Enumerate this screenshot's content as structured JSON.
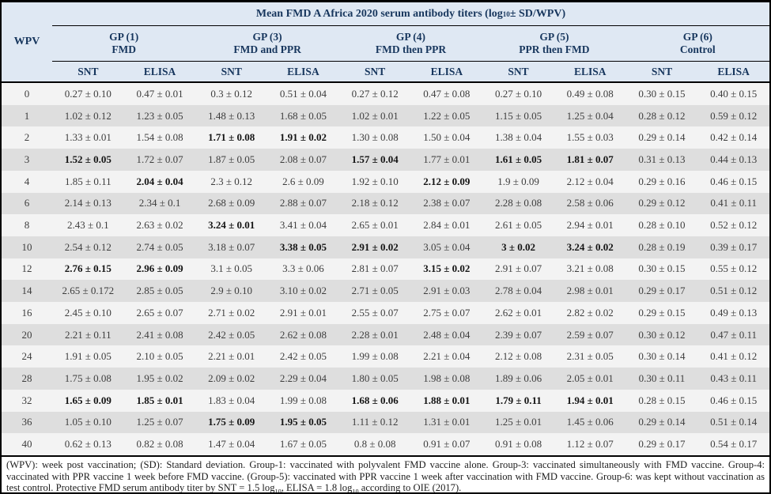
{
  "colors": {
    "header_background": "#dfe8f3",
    "header_text": "#17365d",
    "row_light": "#f3f3f3",
    "row_shaded": "#dedede",
    "body_text": "#3d3d3d",
    "rule": "#000000"
  },
  "table": {
    "title_parts": [
      {
        "t": "Mean FMD A Africa 2020 serum antibody titers (log"
      },
      {
        "t": "10",
        "sub": true
      },
      {
        "t": " ± SD/WPV)"
      }
    ],
    "corner_label": "WPV",
    "groups": [
      {
        "id": "gp1",
        "line1": "GP (1)",
        "line2": "FMD"
      },
      {
        "id": "gp3",
        "line1": "GP (3)",
        "line2": "FMD and PPR"
      },
      {
        "id": "gp4",
        "line1": "GP (4)",
        "line2": "FMD then PPR"
      },
      {
        "id": "gp5",
        "line1": "GP (5)",
        "line2": "PPR then FMD"
      },
      {
        "id": "gp6",
        "line1": "GP (6)",
        "line2": "Control"
      }
    ],
    "subheaders": [
      "SNT",
      "ELISA"
    ],
    "rows": [
      {
        "wpv": "0",
        "cells": [
          {
            "v": "0.27 ± 0.10"
          },
          {
            "v": "0.47 ± 0.01"
          },
          {
            "v": "0.3 ± 0.12"
          },
          {
            "v": "0.51 ± 0.04"
          },
          {
            "v": "0.27 ± 0.12"
          },
          {
            "v": "0.47 ± 0.08"
          },
          {
            "v": "0.27 ± 0.10"
          },
          {
            "v": "0.49 ± 0.08"
          },
          {
            "v": "0.30 ± 0.15"
          },
          {
            "v": "0.40 ± 0.15"
          }
        ]
      },
      {
        "wpv": "1",
        "cells": [
          {
            "v": "1.02 ± 0.12"
          },
          {
            "v": "1.23 ± 0.05"
          },
          {
            "v": "1.48 ± 0.13"
          },
          {
            "v": "1.68 ± 0.05"
          },
          {
            "v": "1.02 ± 0.01"
          },
          {
            "v": "1.22 ± 0.05"
          },
          {
            "v": "1.15 ± 0.05"
          },
          {
            "v": "1.25 ± 0.04"
          },
          {
            "v": "0.28 ± 0.12"
          },
          {
            "v": "0.59 ± 0.12"
          }
        ]
      },
      {
        "wpv": "2",
        "cells": [
          {
            "v": "1.33 ± 0.01"
          },
          {
            "v": "1.54 ± 0.08"
          },
          {
            "v": "1.71 ± 0.08",
            "b": true
          },
          {
            "v": "1.91 ± 0.02",
            "b": true
          },
          {
            "v": "1.30 ± 0.08"
          },
          {
            "v": "1.50 ± 0.04"
          },
          {
            "v": "1.38 ± 0.04"
          },
          {
            "v": "1.55 ± 0.03"
          },
          {
            "v": "0.29 ± 0.14"
          },
          {
            "v": "0.42 ± 0.14"
          }
        ]
      },
      {
        "wpv": "3",
        "cells": [
          {
            "v": "1.52 ± 0.05",
            "b": true
          },
          {
            "v": "1.72 ± 0.07"
          },
          {
            "v": "1.87 ± 0.05"
          },
          {
            "v": "2.08 ± 0.07"
          },
          {
            "v": "1.57 ± 0.04",
            "b": true
          },
          {
            "v": "1.77 ± 0.01"
          },
          {
            "v": "1.61 ± 0.05",
            "b": true
          },
          {
            "v": "1.81 ± 0.07",
            "b": true
          },
          {
            "v": "0.31 ± 0.13"
          },
          {
            "v": "0.44 ± 0.13"
          }
        ]
      },
      {
        "wpv": "4",
        "cells": [
          {
            "v": "1.85 ± 0.11"
          },
          {
            "v": "2.04 ± 0.04",
            "b": true
          },
          {
            "v": "2.3 ± 0.12"
          },
          {
            "v": "2.6 ± 0.09"
          },
          {
            "v": "1.92 ± 0.10"
          },
          {
            "v": "2.12 ± 0.09",
            "b": true
          },
          {
            "v": "1.9 ± 0.09"
          },
          {
            "v": "2.12 ± 0.04"
          },
          {
            "v": "0.29 ± 0.16"
          },
          {
            "v": "0.46 ± 0.15"
          }
        ]
      },
      {
        "wpv": "6",
        "cells": [
          {
            "v": "2.14 ± 0.13"
          },
          {
            "v": "2.34 ± 0.1"
          },
          {
            "v": "2.68 ± 0.09"
          },
          {
            "v": "2.88 ± 0.07"
          },
          {
            "v": "2.18 ± 0.12"
          },
          {
            "v": "2.38 ± 0.07"
          },
          {
            "v": "2.28 ± 0.08"
          },
          {
            "v": "2.58 ± 0.06"
          },
          {
            "v": "0.29 ± 0.12"
          },
          {
            "v": "0.41 ± 0.11"
          }
        ]
      },
      {
        "wpv": "8",
        "cells": [
          {
            "v": "2.43 ± 0.1"
          },
          {
            "v": "2.63 ± 0.02"
          },
          {
            "v": "3.24 ± 0.01",
            "b": true
          },
          {
            "v": "3.41 ± 0.04"
          },
          {
            "v": "2.65 ± 0.01"
          },
          {
            "v": "2.84 ± 0.01"
          },
          {
            "v": "2.61 ± 0.05"
          },
          {
            "v": "2.94 ± 0.01"
          },
          {
            "v": "0.28 ± 0.10"
          },
          {
            "v": "0.52 ± 0.12"
          }
        ]
      },
      {
        "wpv": "10",
        "cells": [
          {
            "v": "2.54 ± 0.12"
          },
          {
            "v": "2.74 ± 0.05"
          },
          {
            "v": "3.18 ± 0.07"
          },
          {
            "v": "3.38 ± 0.05",
            "b": true
          },
          {
            "v": "2.91 ± 0.02",
            "b": true
          },
          {
            "v": "3.05 ± 0.04"
          },
          {
            "v": "3 ± 0.02",
            "b": true
          },
          {
            "v": "3.24 ± 0.02",
            "b": true
          },
          {
            "v": "0.28 ± 0.19"
          },
          {
            "v": "0.39 ± 0.17"
          }
        ]
      },
      {
        "wpv": "12",
        "cells": [
          {
            "v": "2.76 ± 0.15",
            "b": true
          },
          {
            "v": "2.96 ± 0.09",
            "b": true
          },
          {
            "v": "3.1 ± 0.05"
          },
          {
            "v": "3.3 ± 0.06"
          },
          {
            "v": "2.81 ± 0.07"
          },
          {
            "v": "3.15 ± 0.02",
            "b": true
          },
          {
            "v": "2.91 ± 0.07"
          },
          {
            "v": "3.21 ± 0.08"
          },
          {
            "v": "0.30 ± 0.15"
          },
          {
            "v": "0.55 ± 0.12"
          }
        ]
      },
      {
        "wpv": "14",
        "cells": [
          {
            "v": "2.65 ± 0.172"
          },
          {
            "v": "2.85 ± 0.05"
          },
          {
            "v": "2.9 ± 0.10"
          },
          {
            "v": "3.10 ± 0.02"
          },
          {
            "v": "2.71 ± 0.05"
          },
          {
            "v": "2.91 ± 0.03"
          },
          {
            "v": "2.78 ± 0.04"
          },
          {
            "v": "2.98 ± 0.01"
          },
          {
            "v": "0.29 ± 0.17"
          },
          {
            "v": "0.51 ± 0.12"
          }
        ]
      },
      {
        "wpv": "16",
        "cells": [
          {
            "v": "2.45 ± 0.10"
          },
          {
            "v": "2.65 ± 0.07"
          },
          {
            "v": "2.71 ± 0.02"
          },
          {
            "v": "2.91 ± 0.01"
          },
          {
            "v": "2.55 ± 0.07"
          },
          {
            "v": "2.75 ± 0.07"
          },
          {
            "v": "2.62 ± 0.01"
          },
          {
            "v": "2.82 ± 0.02"
          },
          {
            "v": "0.29 ± 0.15"
          },
          {
            "v": "0.49 ± 0.13"
          }
        ]
      },
      {
        "wpv": "20",
        "cells": [
          {
            "v": "2.21 ± 0.11"
          },
          {
            "v": "2.41 ± 0.08"
          },
          {
            "v": "2.42 ± 0.05"
          },
          {
            "v": "2.62 ± 0.08"
          },
          {
            "v": "2.28 ± 0.01"
          },
          {
            "v": "2.48 ± 0.04"
          },
          {
            "v": "2.39 ± 0.07"
          },
          {
            "v": "2.59 ± 0.07"
          },
          {
            "v": "0.30 ± 0.12"
          },
          {
            "v": "0.47 ± 0.11"
          }
        ]
      },
      {
        "wpv": "24",
        "cells": [
          {
            "v": "1.91 ± 0.05"
          },
          {
            "v": "2.10 ± 0.05"
          },
          {
            "v": "2.21 ± 0.01"
          },
          {
            "v": "2.42 ± 0.05"
          },
          {
            "v": "1.99 ± 0.08"
          },
          {
            "v": "2.21 ± 0.04"
          },
          {
            "v": "2.12 ± 0.08"
          },
          {
            "v": "2.31 ± 0.05"
          },
          {
            "v": "0.30 ± 0.14"
          },
          {
            "v": "0.41 ± 0.12"
          }
        ]
      },
      {
        "wpv": "28",
        "cells": [
          {
            "v": "1.75 ± 0.08"
          },
          {
            "v": "1.95 ± 0.02"
          },
          {
            "v": "2.09 ± 0.02"
          },
          {
            "v": "2.29 ± 0.04"
          },
          {
            "v": "1.80 ± 0.05"
          },
          {
            "v": "1.98 ± 0.08"
          },
          {
            "v": "1.89 ± 0.06"
          },
          {
            "v": "2.05 ± 0.01"
          },
          {
            "v": "0.30 ± 0.11"
          },
          {
            "v": "0.43 ± 0.11"
          }
        ]
      },
      {
        "wpv": "32",
        "cells": [
          {
            "v": "1.65 ± 0.09",
            "b": true
          },
          {
            "v": "1.85 ± 0.01",
            "b": true
          },
          {
            "v": "1.83 ± 0.04"
          },
          {
            "v": "1.99 ± 0.08"
          },
          {
            "v": "1.68 ± 0.06",
            "b": true
          },
          {
            "v": "1.88 ± 0.01",
            "b": true
          },
          {
            "v": "1.79 ± 0.11",
            "b": true
          },
          {
            "v": "1.94 ± 0.01",
            "b": true
          },
          {
            "v": "0.28 ± 0.15"
          },
          {
            "v": "0.46 ± 0.15"
          }
        ]
      },
      {
        "wpv": "36",
        "cells": [
          {
            "v": "1.05 ± 0.10"
          },
          {
            "v": "1.25 ± 0.07"
          },
          {
            "v": "1.75 ± 0.09",
            "b": true
          },
          {
            "v": "1.95 ± 0.05",
            "b": true
          },
          {
            "v": "1.11 ± 0.12"
          },
          {
            "v": "1.31 ± 0.01"
          },
          {
            "v": "1.25 ± 0.01"
          },
          {
            "v": "1.45 ± 0.06"
          },
          {
            "v": "0.29 ± 0.14"
          },
          {
            "v": "0.51 ± 0.14"
          }
        ]
      },
      {
        "wpv": "40",
        "cells": [
          {
            "v": "0.62 ± 0.13"
          },
          {
            "v": "0.82 ± 0.08"
          },
          {
            "v": "1.47 ± 0.04"
          },
          {
            "v": "1.67 ± 0.05"
          },
          {
            "v": "0.8 ± 0.08"
          },
          {
            "v": "0.91 ± 0.07"
          },
          {
            "v": "0.91 ± 0.08"
          },
          {
            "v": "1.12 ± 0.07"
          },
          {
            "v": "0.29 ± 0.17"
          },
          {
            "v": "0.54 ± 0.17"
          }
        ]
      }
    ]
  },
  "footnote_parts": [
    {
      "t": "(WPV): week post vaccination; (SD): Standard deviation. Group-1: vaccinated with polyvalent FMD vaccine alone. Group-3: vaccinated simultaneously with FMD vaccine. Group-4: vaccinated with PPR vaccine 1 week before FMD vaccine. (Group-5): vaccinated with PPR vaccine 1 week after vaccination with FMD vaccine. Group-6: was kept without vaccination as test control. Protective FMD serum antibody titer by SNT = 1.5 log"
    },
    {
      "t": "10",
      "sub": true
    },
    {
      "t": ", ELISA = 1.8 log"
    },
    {
      "t": "10",
      "sub": true
    },
    {
      "t": " according to OIE (2017)."
    }
  ]
}
